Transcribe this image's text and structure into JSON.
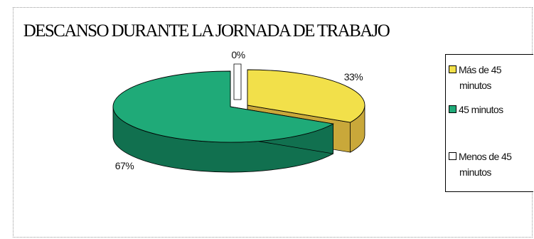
{
  "chart_data": {
    "type": "pie",
    "title": "DESCANSO DURANTE LA JORNADA DE TRABAJO",
    "categories": [
      "Más de 45 minutos",
      "45 minutos",
      "Menos de 45 minutos"
    ],
    "values": [
      33,
      67,
      0
    ],
    "data_labels": [
      "33%",
      "67%",
      "0%"
    ],
    "colors": [
      "#f2e04a",
      "#1faa78",
      "#ffffff"
    ],
    "side_colors": [
      "#c9a83a",
      "#11704f",
      "#d8d8d8"
    ],
    "style": "3d-exploded",
    "legend_position": "right",
    "legend": [
      {
        "line1": "Más de 45",
        "line2": "minutos"
      },
      {
        "line1": "45 minutos",
        "line2": ""
      },
      {
        "line1": "Menos de 45",
        "line2": "minutos"
      }
    ]
  }
}
